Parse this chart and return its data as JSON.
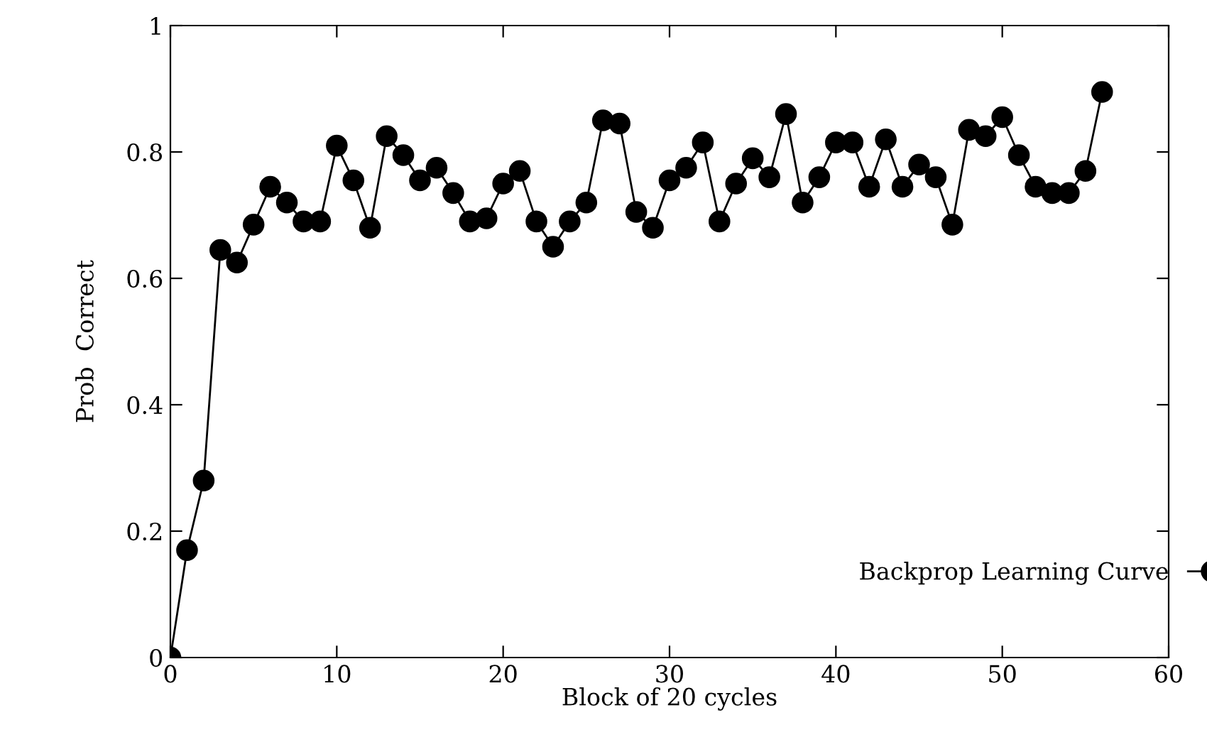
{
  "chart_data": {
    "type": "line",
    "xlabel": "Block of 20 cycles",
    "ylabel": "Prob  Correct",
    "x": [
      0,
      1,
      2,
      3,
      4,
      5,
      6,
      7,
      8,
      9,
      10,
      11,
      12,
      13,
      14,
      15,
      16,
      17,
      18,
      19,
      20,
      21,
      22,
      23,
      24,
      25,
      26,
      27,
      28,
      29,
      30,
      31,
      32,
      33,
      34,
      35,
      36,
      37,
      38,
      39,
      40,
      41,
      42,
      43,
      44,
      45,
      46,
      47,
      48,
      49,
      50,
      51,
      52,
      53,
      54,
      55,
      56
    ],
    "series": [
      {
        "name": "Backprop Learning Curve",
        "color": "#000000",
        "values": [
          0,
          0.17,
          0.28,
          0.645,
          0.625,
          0.685,
          0.745,
          0.72,
          0.69,
          0.69,
          0.81,
          0.755,
          0.68,
          0.825,
          0.795,
          0.755,
          0.775,
          0.735,
          0.69,
          0.695,
          0.75,
          0.77,
          0.69,
          0.65,
          0.69,
          0.72,
          0.85,
          0.845,
          0.705,
          0.68,
          0.755,
          0.775,
          0.815,
          0.69,
          0.75,
          0.79,
          0.76,
          0.86,
          0.72,
          0.76,
          0.815,
          0.815,
          0.745,
          0.82,
          0.745,
          0.78,
          0.76,
          0.685,
          0.835,
          0.825,
          0.855,
          0.795,
          0.745,
          0.735,
          0.735,
          0.77,
          0.895
        ]
      }
    ],
    "xlim": [
      0,
      60
    ],
    "ylim": [
      0,
      1
    ],
    "xticks": [
      0,
      10,
      20,
      30,
      40,
      50,
      60
    ],
    "yticks": [
      0,
      0.2,
      0.4,
      0.6,
      0.8,
      1
    ],
    "marker": "circle",
    "line_style": "solid",
    "grid": false,
    "legend": "bottom right"
  }
}
